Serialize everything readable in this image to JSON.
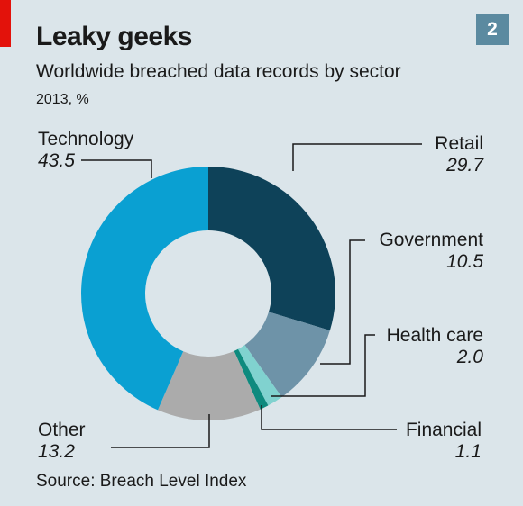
{
  "header": {
    "title": "Leaky geeks",
    "subtitle": "Worldwide breached data records by sector",
    "unit": "2013, %",
    "badge": "2"
  },
  "footer": {
    "source": "Source: Breach Level Index"
  },
  "colors": {
    "background": "#dbe5ea",
    "accent_red": "#e3120b",
    "badge": "#5b8aa0"
  },
  "chart_data": {
    "type": "pie",
    "donut": true,
    "categories": [
      "Retail",
      "Government",
      "Health care",
      "Financial",
      "Other",
      "Technology"
    ],
    "values": [
      29.7,
      10.5,
      2.0,
      1.1,
      13.2,
      43.5
    ],
    "value_labels": [
      "29.7",
      "10.5",
      "2.0",
      "1.1",
      "13.2",
      "43.5"
    ],
    "colors": [
      "#0e4259",
      "#6e93a8",
      "#80d2cf",
      "#0e8a7e",
      "#ababab",
      "#0aa0d2"
    ],
    "start": "12 o'clock, clockwise",
    "legend": "direct labels with leader lines"
  }
}
